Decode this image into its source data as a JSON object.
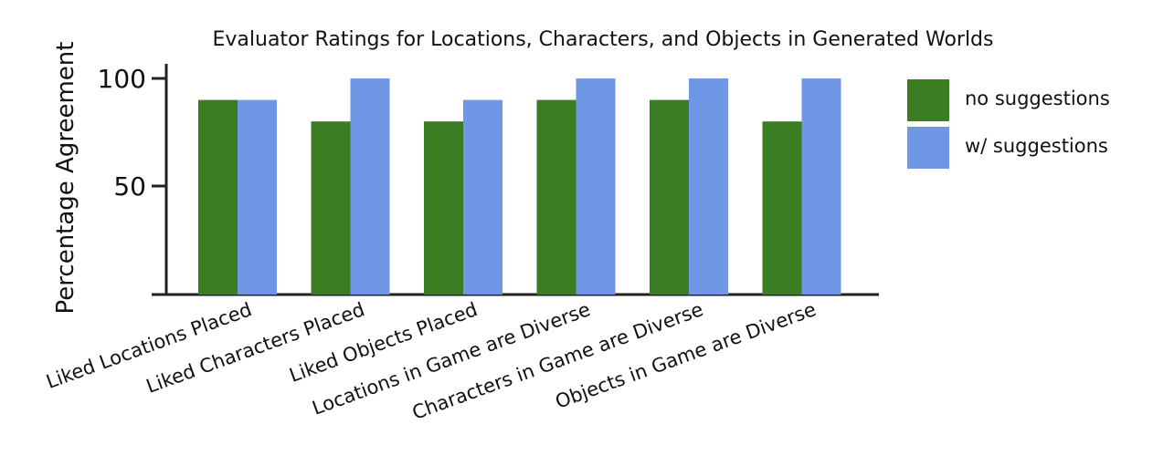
{
  "chart_data": {
    "type": "bar",
    "title": "Evaluator Ratings for Locations, Characters, and Objects in Generated Worlds",
    "xlabel": "",
    "ylabel": "Percentage Agreement",
    "ylim": [
      0,
      100
    ],
    "yticks": [
      50,
      100
    ],
    "grid": false,
    "legend_position": "right",
    "categories": [
      "Liked Locations  Placed",
      "Liked Characters  Placed",
      "Liked Objects  Placed",
      "Locations in Game are Diverse",
      "Characters in Game are Diverse",
      "Objects in Game are Diverse"
    ],
    "series": [
      {
        "name": "no suggestions",
        "color": "#3a7d23",
        "values": [
          90,
          80,
          80,
          90,
          90,
          80
        ]
      },
      {
        "name": "w/ suggestions",
        "color": "#6e97e6",
        "values": [
          90,
          100,
          90,
          100,
          100,
          100
        ]
      }
    ]
  }
}
